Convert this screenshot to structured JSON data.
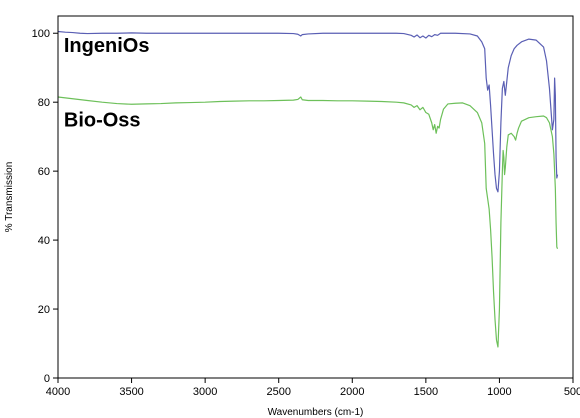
{
  "chart_data": {
    "type": "line",
    "title": "",
    "xlabel": "Wavenumbers (cm-1)",
    "ylabel": "% Transmission",
    "xlim": [
      4000,
      500
    ],
    "ylim": [
      0,
      105
    ],
    "x_ticks": [
      4000,
      3500,
      3000,
      2500,
      2000,
      1500,
      1000,
      500
    ],
    "x_tick_labels": [
      "4000",
      "3500",
      "3000",
      "2500",
      "2000",
      "1500",
      "1000",
      "500"
    ],
    "y_ticks": [
      0,
      20,
      40,
      60,
      80,
      100
    ],
    "y_tick_labels": [
      "0",
      "20",
      "40",
      "60",
      "80",
      "100"
    ],
    "grid": false,
    "series": [
      {
        "name": "IngeniOs",
        "color": "#5a5fb4",
        "x": [
          4000,
          3950,
          3900,
          3850,
          3800,
          3700,
          3600,
          3500,
          3400,
          3300,
          3200,
          3100,
          3000,
          2900,
          2800,
          2700,
          2600,
          2500,
          2400,
          2370,
          2350,
          2340,
          2300,
          2200,
          2100,
          2000,
          1900,
          1800,
          1700,
          1650,
          1600,
          1580,
          1560,
          1540,
          1520,
          1500,
          1480,
          1460,
          1440,
          1420,
          1400,
          1300,
          1200,
          1150,
          1120,
          1100,
          1090,
          1080,
          1070,
          1060,
          1050,
          1040,
          1030,
          1020,
          1010,
          1000,
          990,
          980,
          970,
          960,
          950,
          940,
          920,
          900,
          880,
          850,
          800,
          750,
          700,
          680,
          660,
          640,
          630,
          625,
          620,
          615,
          610,
          605
        ],
        "values": [
          100.5,
          100.3,
          100.2,
          100.0,
          99.9,
          100.0,
          100.0,
          100.1,
          100.0,
          100.0,
          100.0,
          100.0,
          100.0,
          100.0,
          100.0,
          100.0,
          100.0,
          100.0,
          99.9,
          99.7,
          99.2,
          99.6,
          99.8,
          100.0,
          100.0,
          100.0,
          100.0,
          100.0,
          100.0,
          99.9,
          99.4,
          98.9,
          99.5,
          98.7,
          99.2,
          98.6,
          99.4,
          99.0,
          99.6,
          99.4,
          100.0,
          100.0,
          99.8,
          99.2,
          97.5,
          95.5,
          87.0,
          83.5,
          85.0,
          79.0,
          72.0,
          65.0,
          59.0,
          55.0,
          54.0,
          60.0,
          74.0,
          84.0,
          86.0,
          82.0,
          86.0,
          90.0,
          93.5,
          95.5,
          96.5,
          97.5,
          98.3,
          98.0,
          96.0,
          92.0,
          84.0,
          72.0,
          75.0,
          87.0,
          82.0,
          64.0,
          58.0,
          59.0
        ]
      },
      {
        "name": "Bio-Oss",
        "color": "#6dc05a",
        "x": [
          4000,
          3900,
          3800,
          3700,
          3600,
          3500,
          3400,
          3300,
          3200,
          3100,
          3000,
          2900,
          2800,
          2700,
          2600,
          2500,
          2400,
          2370,
          2350,
          2340,
          2300,
          2200,
          2100,
          2000,
          1900,
          1800,
          1700,
          1650,
          1600,
          1580,
          1560,
          1540,
          1520,
          1500,
          1480,
          1460,
          1450,
          1440,
          1430,
          1420,
          1410,
          1400,
          1380,
          1350,
          1300,
          1250,
          1200,
          1150,
          1120,
          1100,
          1090,
          1080,
          1070,
          1060,
          1050,
          1040,
          1030,
          1020,
          1010,
          1000,
          990,
          980,
          975,
          970,
          965,
          960,
          950,
          940,
          920,
          900,
          890,
          880,
          870,
          860,
          850,
          800,
          750,
          700,
          680,
          660,
          640,
          630,
          620,
          615,
          610,
          605
        ],
        "values": [
          81.5,
          81.0,
          80.5,
          80.0,
          79.6,
          79.4,
          79.5,
          79.6,
          79.8,
          79.9,
          80.0,
          80.2,
          80.3,
          80.4,
          80.4,
          80.5,
          80.6,
          80.8,
          81.5,
          80.7,
          80.5,
          80.5,
          80.4,
          80.4,
          80.3,
          80.2,
          80.0,
          79.8,
          79.2,
          78.5,
          79.0,
          77.8,
          78.5,
          77.0,
          76.5,
          74.0,
          72.0,
          73.5,
          71.0,
          73.0,
          72.5,
          75.0,
          78.0,
          79.5,
          79.7,
          79.8,
          79.0,
          77.0,
          74.0,
          68.0,
          55.0,
          52.0,
          49.0,
          43.0,
          35.0,
          25.0,
          17.0,
          11.0,
          9.0,
          20.0,
          45.0,
          60.0,
          66.0,
          64.0,
          59.0,
          61.0,
          67.0,
          70.5,
          71.0,
          70.0,
          69.0,
          71.0,
          72.5,
          73.5,
          74.5,
          75.5,
          75.8,
          76.0,
          75.5,
          74.0,
          70.0,
          65.0,
          55.0,
          45.0,
          38.0,
          37.5
        ]
      }
    ],
    "annotations": [
      {
        "text": "IngeniOs",
        "x": 3960,
        "y": 94.5
      },
      {
        "text": "Bio-Oss",
        "x": 3960,
        "y": 73.0
      }
    ]
  }
}
